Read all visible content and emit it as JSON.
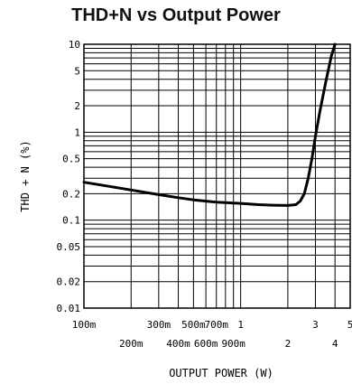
{
  "chart_data": {
    "type": "line",
    "title": "THD+N vs Output Power",
    "xlabel": "OUTPUT POWER (W)",
    "ylabel": "THD + N (%)",
    "xscale": "log",
    "yscale": "log",
    "xlim": [
      0.1,
      5
    ],
    "ylim": [
      0.01,
      10
    ],
    "grid": true,
    "x_tick_labels_upper": [
      {
        "value": 0.1,
        "label": "100m"
      },
      {
        "value": 0.3,
        "label": "300m"
      },
      {
        "value": 0.5,
        "label": "500m"
      },
      {
        "value": 0.7,
        "label": "700m"
      },
      {
        "value": 1,
        "label": "1"
      },
      {
        "value": 3,
        "label": "3"
      },
      {
        "value": 5,
        "label": "5"
      }
    ],
    "x_tick_labels_lower": [
      {
        "value": 0.2,
        "label": "200m"
      },
      {
        "value": 0.4,
        "label": "400m"
      },
      {
        "value": 0.6,
        "label": "600m"
      },
      {
        "value": 0.9,
        "label": "900m"
      },
      {
        "value": 2,
        "label": "2"
      },
      {
        "value": 4,
        "label": "4"
      }
    ],
    "y_tick_labels": [
      {
        "value": 10,
        "label": "10"
      },
      {
        "value": 5,
        "label": "5"
      },
      {
        "value": 2,
        "label": "2"
      },
      {
        "value": 1,
        "label": "1"
      },
      {
        "value": 0.5,
        "label": "0.5"
      },
      {
        "value": 0.2,
        "label": "0.2"
      },
      {
        "value": 0.1,
        "label": "0.1"
      },
      {
        "value": 0.05,
        "label": "0.05"
      },
      {
        "value": 0.02,
        "label": "0.02"
      },
      {
        "value": 0.01,
        "label": "0.01"
      }
    ],
    "series": [
      {
        "x": [
          0.1,
          0.15,
          0.2,
          0.3,
          0.4,
          0.5,
          0.7,
          1.0,
          1.3,
          1.6,
          2.0,
          2.25,
          2.4,
          2.55,
          2.7,
          2.85,
          3.0,
          3.2,
          3.5,
          3.8,
          4.0
        ],
        "y": [
          0.27,
          0.24,
          0.22,
          0.195,
          0.18,
          0.17,
          0.16,
          0.155,
          0.15,
          0.148,
          0.147,
          0.15,
          0.165,
          0.2,
          0.3,
          0.5,
          0.9,
          1.7,
          3.8,
          7.5,
          10
        ]
      }
    ]
  }
}
